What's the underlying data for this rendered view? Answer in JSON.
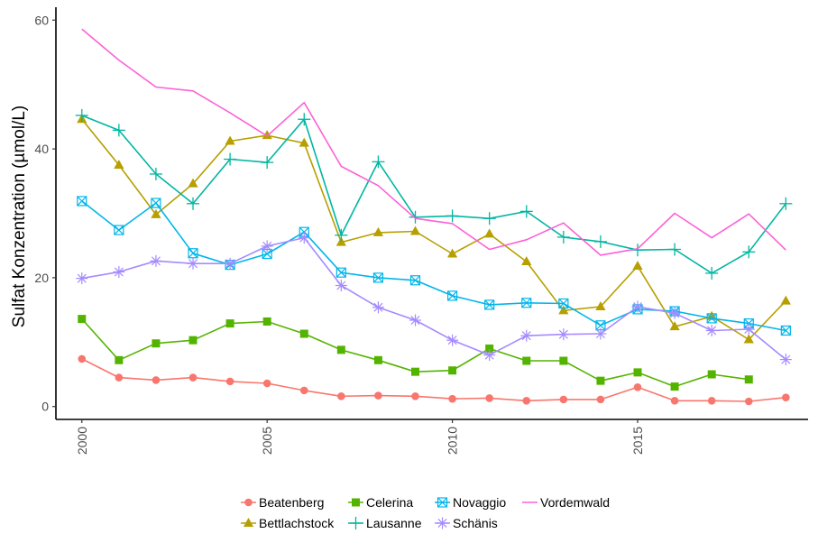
{
  "chart_data": {
    "type": "line",
    "title": "",
    "xlabel": "",
    "ylabel": "Sulfat Konzentration (µmol/L)",
    "xlim": [
      1999.3,
      2019.6
    ],
    "ylim": [
      -2,
      62
    ],
    "x_ticks": [
      2000,
      2005,
      2010,
      2015
    ],
    "x_tick_labels": [
      "2000",
      "2005",
      "2010",
      "2015"
    ],
    "y_ticks": [
      0,
      20,
      40,
      60
    ],
    "y_tick_labels": [
      "0",
      "20",
      "40",
      "60"
    ],
    "grid": false,
    "legend_position": "bottom",
    "series": [
      {
        "name": "Beatenberg",
        "color": "#F8766D",
        "marker": "circle",
        "x": [
          2000,
          2001,
          2002,
          2003,
          2004,
          2005,
          2006,
          2007,
          2008,
          2009,
          2010,
          2011,
          2012,
          2013,
          2014,
          2015,
          2016,
          2017,
          2018,
          2019
        ],
        "y": [
          7.4,
          4.5,
          4.1,
          4.5,
          3.9,
          3.6,
          2.5,
          1.6,
          1.7,
          1.6,
          1.2,
          1.3,
          0.9,
          1.1,
          1.1,
          3.0,
          0.9,
          0.9,
          0.8,
          1.4
        ]
      },
      {
        "name": "Bettlachstock",
        "color": "#B79F00",
        "marker": "triangle",
        "x": [
          2000,
          2001,
          2002,
          2003,
          2004,
          2005,
          2006,
          2007,
          2008,
          2009,
          2010,
          2011,
          2012,
          2013,
          2014,
          2015,
          2016,
          2017,
          2018,
          2019
        ],
        "y": [
          44.6,
          37.5,
          29.8,
          34.6,
          41.2,
          42.1,
          40.9,
          25.5,
          27.0,
          27.2,
          23.7,
          26.8,
          22.5,
          14.9,
          15.5,
          21.8,
          12.4,
          14.0,
          10.4,
          16.4
        ]
      },
      {
        "name": "Celerina",
        "color": "#53B400",
        "marker": "square",
        "x": [
          2000,
          2001,
          2002,
          2003,
          2004,
          2005,
          2006,
          2007,
          2008,
          2009,
          2010,
          2011,
          2012,
          2013,
          2014,
          2015,
          2016,
          2017,
          2018
        ],
        "y": [
          13.6,
          7.2,
          9.8,
          10.3,
          12.9,
          13.2,
          11.3,
          8.8,
          7.2,
          5.4,
          5.6,
          9.0,
          7.1,
          7.1,
          4.0,
          5.3,
          3.1,
          5.0,
          4.2
        ]
      },
      {
        "name": "Lausanne",
        "color": "#00B6A1",
        "marker": "plus",
        "x": [
          2000,
          2001,
          2002,
          2003,
          2004,
          2005,
          2006,
          2007,
          2008,
          2009,
          2010,
          2011,
          2012,
          2013,
          2014,
          2015,
          2016,
          2017,
          2018,
          2019
        ],
        "y": [
          45.2,
          42.9,
          36.1,
          31.5,
          38.4,
          37.9,
          44.6,
          26.6,
          38.0,
          29.4,
          29.6,
          29.2,
          30.3,
          26.3,
          25.6,
          24.3,
          24.4,
          20.7,
          24.0,
          31.5
        ]
      },
      {
        "name": "Novaggio",
        "color": "#00B6EB",
        "marker": "boxx",
        "x": [
          2000,
          2001,
          2002,
          2003,
          2004,
          2005,
          2006,
          2007,
          2008,
          2009,
          2010,
          2011,
          2012,
          2013,
          2014,
          2015,
          2016,
          2017,
          2018,
          2019
        ],
        "y": [
          31.9,
          27.4,
          31.6,
          23.8,
          22.0,
          23.7,
          27.1,
          20.8,
          20.0,
          19.6,
          17.2,
          15.8,
          16.1,
          16.0,
          12.6,
          15.1,
          14.8,
          13.7,
          12.9,
          11.8
        ]
      },
      {
        "name": "Schänis",
        "color": "#A58AFF",
        "marker": "star",
        "x": [
          2000,
          2001,
          2002,
          2003,
          2004,
          2005,
          2006,
          2007,
          2008,
          2009,
          2010,
          2011,
          2012,
          2013,
          2014,
          2015,
          2016,
          2017,
          2018,
          2019
        ],
        "y": [
          19.9,
          20.9,
          22.6,
          22.2,
          22.2,
          24.9,
          26.2,
          18.8,
          15.4,
          13.4,
          10.3,
          8.0,
          11.0,
          11.2,
          11.3,
          15.5,
          14.5,
          11.8,
          12.0,
          7.3
        ]
      },
      {
        "name": "Vordemwald",
        "color": "#FB61D7",
        "marker": "none",
        "x": [
          2000,
          2001,
          2002,
          2003,
          2004,
          2005,
          2006,
          2007,
          2008,
          2009,
          2010,
          2011,
          2012,
          2013,
          2014,
          2015,
          2016,
          2017,
          2018,
          2019
        ],
        "y": [
          58.6,
          53.8,
          49.6,
          49.0,
          45.6,
          42.0,
          47.2,
          37.3,
          34.3,
          29.2,
          28.4,
          24.4,
          25.9,
          28.5,
          23.5,
          24.5,
          30.0,
          26.2,
          29.9,
          24.3
        ]
      }
    ],
    "legend_rows": [
      [
        "Beatenberg",
        "Celerina",
        "Novaggio",
        "Vordemwald"
      ],
      [
        "Bettlachstock",
        "Lausanne",
        "Schänis"
      ]
    ]
  }
}
